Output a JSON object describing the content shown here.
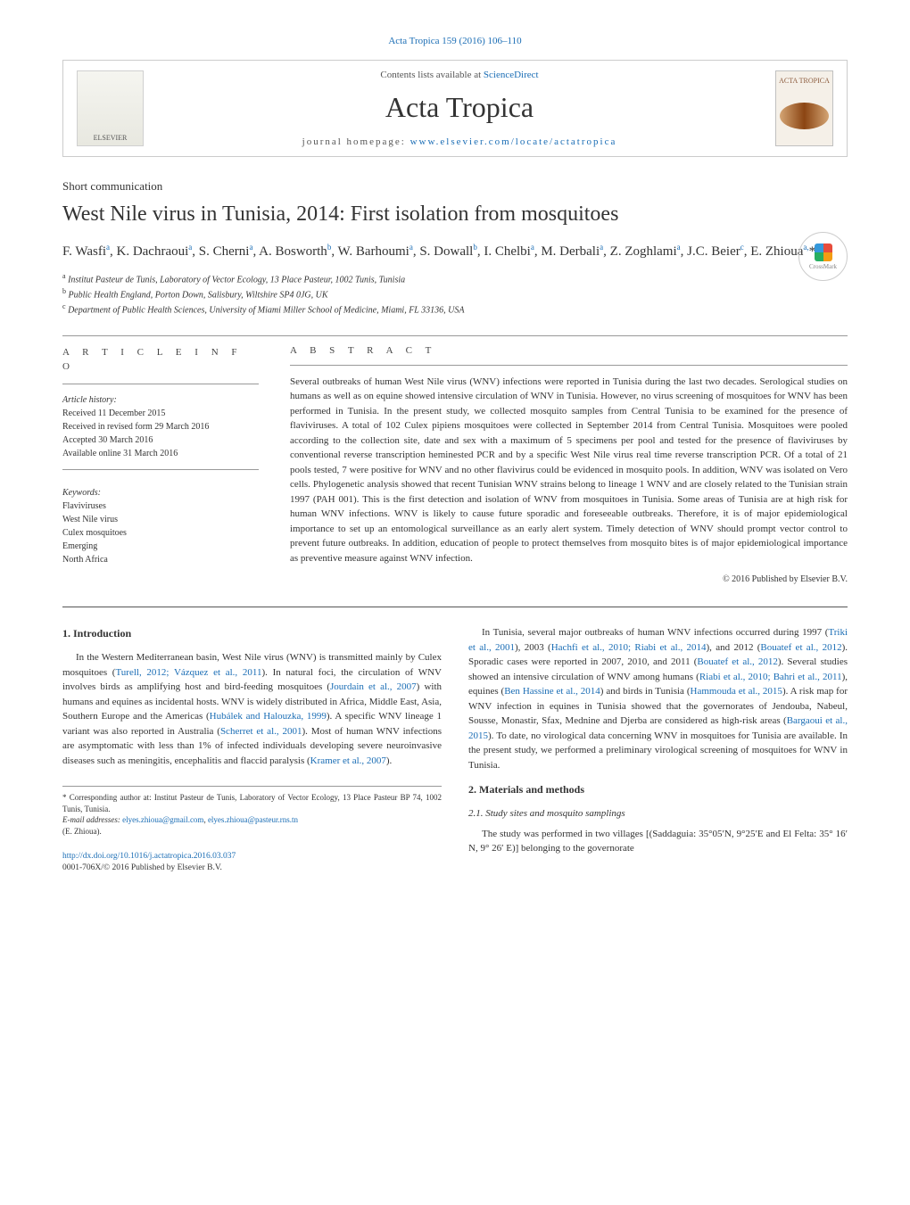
{
  "header": {
    "citation": "Acta Tropica 159 (2016) 106–110",
    "contents_prefix": "Contents lists available at ",
    "contents_link": "ScienceDirect",
    "journal_title": "Acta Tropica",
    "homepage_prefix": "journal homepage: ",
    "homepage_link": "www.elsevier.com/locate/actatropica",
    "elsevier_label": "ELSEVIER",
    "cover_label": "ACTA TROPICA"
  },
  "article": {
    "type": "Short communication",
    "title": "West Nile virus in Tunisia, 2014: First isolation from mosquitoes",
    "crossmark": "CrossMark",
    "authors_html": "F. Wasfi<sup>a</sup>, K. Dachraoui<sup>a</sup>, S. Cherni<sup>a</sup>, A. Bosworth<sup>b</sup>, W. Barhoumi<sup>a</sup>, S. Dowall<sup>b</sup>, I. Chelbi<sup>a</sup>, M. Derbali<sup>a</sup>, Z. Zoghlami<sup>a</sup>, J.C. Beier<sup>c</sup>, E. Zhioua<sup>a,</sup>*",
    "affiliations": {
      "a": "Institut Pasteur de Tunis, Laboratory of Vector Ecology, 13 Place Pasteur, 1002 Tunis, Tunisia",
      "b": "Public Health England, Porton Down, Salisbury, Wiltshire SP4 0JG, UK",
      "c": "Department of Public Health Sciences, University of Miami Miller School of Medicine, Miami, FL 33136, USA"
    }
  },
  "info": {
    "heading": "a r t i c l e   i n f o",
    "history_label": "Article history:",
    "received": "Received 11 December 2015",
    "revised": "Received in revised form 29 March 2016",
    "accepted": "Accepted 30 March 2016",
    "online": "Available online 31 March 2016",
    "keywords_label": "Keywords:",
    "keywords": [
      "Flaviviruses",
      "West Nile virus",
      "Culex mosquitoes",
      "Emerging",
      "North Africa"
    ]
  },
  "abstract": {
    "heading": "a b s t r a c t",
    "text": "Several outbreaks of human West Nile virus (WNV) infections were reported in Tunisia during the last two decades. Serological studies on humans as well as on equine showed intensive circulation of WNV in Tunisia. However, no virus screening of mosquitoes for WNV has been performed in Tunisia. In the present study, we collected mosquito samples from Central Tunisia to be examined for the presence of flaviviruses. A total of 102 Culex pipiens mosquitoes were collected in September 2014 from Central Tunisia. Mosquitoes were pooled according to the collection site, date and sex with a maximum of 5 specimens per pool and tested for the presence of flaviviruses by conventional reverse transcription heminested PCR and by a specific West Nile virus real time reverse transcription PCR. Of a total of 21 pools tested, 7 were positive for WNV and no other flavivirus could be evidenced in mosquito pools. In addition, WNV was isolated on Vero cells. Phylogenetic analysis showed that recent Tunisian WNV strains belong to lineage 1 WNV and are closely related to the Tunisian strain 1997 (PAH 001). This is the first detection and isolation of WNV from mosquitoes in Tunisia. Some areas of Tunisia are at high risk for human WNV infections. WNV is likely to cause future sporadic and foreseeable outbreaks. Therefore, it is of major epidemiological importance to set up an entomological surveillance as an early alert system. Timely detection of WNV should prompt vector control to prevent future outbreaks. In addition, education of people to protect themselves from mosquito bites is of major epidemiological importance as preventive measure against WNV infection.",
    "copyright": "© 2016 Published by Elsevier B.V."
  },
  "body": {
    "intro_heading": "1. Introduction",
    "methods_heading": "2. Materials and methods",
    "sub21_heading": "2.1. Study sites and mosquito samplings",
    "col1_p1_pre": "In the Western Mediterranean basin, West Nile virus (WNV) is transmitted mainly by Culex mosquitoes (",
    "col1_p1_c1": "Turell, 2012; Vázquez et al., 2011",
    "col1_p1_mid1": "). In natural foci, the circulation of WNV involves birds as amplifying host and bird-feeding mosquitoes (",
    "col1_p1_c2": "Jourdain et al., 2007",
    "col1_p1_mid2": ") with humans and equines as incidental hosts. WNV is widely distributed in Africa, Middle East, Asia, Southern Europe and the Americas (",
    "col1_p1_c3": "Hubálek and Halouzka, 1999",
    "col1_p1_mid3": "). A specific WNV lineage 1 variant was also reported in Australia (",
    "col1_p1_c4": "Scherret et al., 2001",
    "col1_p1_mid4": "). Most of human WNV infections are asymptomatic with less than 1% of infected individuals developing severe neuroinvasive diseases such as meningitis, encephalitis and flaccid paralysis (",
    "col1_p1_c5": "Kramer et al., 2007",
    "col1_p1_post": ").",
    "col2_p1_pre": "In Tunisia, several major outbreaks of human WNV infections occurred during 1997 (",
    "col2_p1_c1": "Triki et al., 2001",
    "col2_p1_m1": "), 2003 (",
    "col2_p1_c2": "Hachfi et al., 2010; Riabi et al., 2014",
    "col2_p1_m2": "), and 2012 (",
    "col2_p1_c3": "Bouatef et al., 2012",
    "col2_p1_m3": "). Sporadic cases were reported in 2007, 2010, and 2011 (",
    "col2_p1_c4": "Bouatef et al., 2012",
    "col2_p1_m4": "). Several studies showed an intensive circulation of WNV among humans (",
    "col2_p1_c5": "Riabi et al., 2010; Bahri et al., 2011",
    "col2_p1_m5": "), equines (",
    "col2_p1_c6": "Ben Hassine et al., 2014",
    "col2_p1_m6": ") and birds in Tunisia (",
    "col2_p1_c7": "Hammouda et al., 2015",
    "col2_p1_m7": "). A risk map for WNV infection in equines in Tunisia showed that the governorates of Jendouba, Nabeul, Sousse, Monastir, Sfax, Mednine and Djerba are considered as high-risk areas (",
    "col2_p1_c8": "Bargaoui et al., 2015",
    "col2_p1_post": "). To date, no virological data concerning WNV in mosquitoes for Tunisia are available. In the present study, we performed a preliminary virological screening of mosquitoes for WNV in Tunisia.",
    "col2_p2": "The study was performed in two villages [(Saddaguia: 35°05′N, 9°25′E and El Felta: 35° 16′ N, 9° 26′ E)] belonging to the governorate"
  },
  "footnote": {
    "corr_label": "* Corresponding author at: Institut Pasteur de Tunis, Laboratory of Vector Ecology, 13 Place Pasteur BP 74, 1002 Tunis, Tunisia.",
    "email_label": "E-mail addresses: ",
    "email1": "elyes.zhioua@gmail.com",
    "email_sep": ", ",
    "email2": "elyes.zhioua@pasteur.rns.tn",
    "email_author": "(E. Zhioua)."
  },
  "footer": {
    "doi": "http://dx.doi.org/10.1016/j.actatropica.2016.03.037",
    "issn_line": "0001-706X/© 2016 Published by Elsevier B.V."
  }
}
